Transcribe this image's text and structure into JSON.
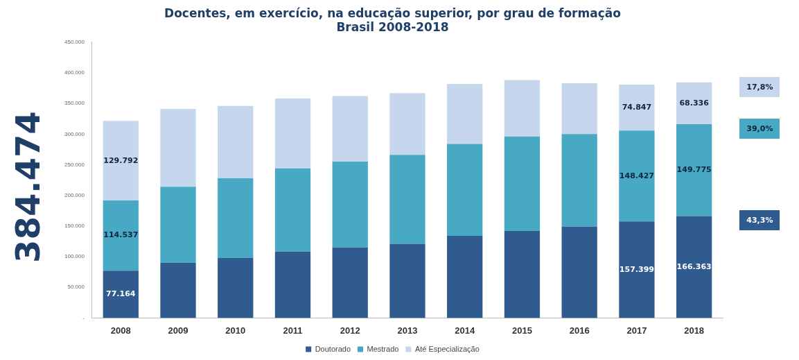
{
  "chart_data": {
    "type": "bar",
    "stacked": true,
    "title": "Docentes, em exercício, na educação superior, por grau de formação",
    "subtitle": "Brasil 2008-2018",
    "categories": [
      "2008",
      "2009",
      "2010",
      "2011",
      "2012",
      "2013",
      "2014",
      "2015",
      "2016",
      "2017",
      "2018"
    ],
    "series": [
      {
        "name": "Doutorado",
        "color": "#2f5b8f",
        "values": [
          77164,
          90000,
          98000,
          108000,
          115000,
          121000,
          134000,
          142000,
          149000,
          157399,
          166363
        ],
        "value_labels": [
          "77.164",
          null,
          null,
          null,
          null,
          null,
          null,
          null,
          null,
          "157.399",
          "166.363"
        ]
      },
      {
        "name": "Mestrado",
        "color": "#47a9c3",
        "values": [
          114537,
          124000,
          130000,
          136000,
          140000,
          145000,
          150000,
          154000,
          151000,
          148427,
          149775
        ],
        "value_labels": [
          "114.537",
          null,
          null,
          null,
          null,
          null,
          null,
          null,
          null,
          "148.427",
          "149.775"
        ]
      },
      {
        "name": "Até Especialização",
        "color": "#c6d6ec",
        "values": [
          129792,
          127000,
          118000,
          114000,
          107000,
          101000,
          98000,
          92000,
          83000,
          74847,
          68336
        ],
        "value_labels": [
          "129.792",
          null,
          null,
          null,
          null,
          null,
          null,
          null,
          null,
          "74.847",
          "68.336"
        ]
      }
    ],
    "ylim": [
      0,
      450000
    ],
    "yticks": [
      {
        "value": 0,
        "label": "-"
      },
      {
        "value": 50000,
        "label": "50.000"
      },
      {
        "value": 100000,
        "label": "100.000"
      },
      {
        "value": 150000,
        "label": "150.000"
      },
      {
        "value": 200000,
        "label": "200.000"
      },
      {
        "value": 250000,
        "label": "250.000"
      },
      {
        "value": 300000,
        "label": "300.000"
      },
      {
        "value": 350000,
        "label": "350.000"
      },
      {
        "value": 400000,
        "label": "400.000"
      },
      {
        "value": 450000,
        "label": "450.000"
      }
    ],
    "grid": false,
    "legend": "bottom",
    "annotations": [
      "384.474",
      "17,8%",
      "39,0%",
      "43,3%"
    ]
  }
}
